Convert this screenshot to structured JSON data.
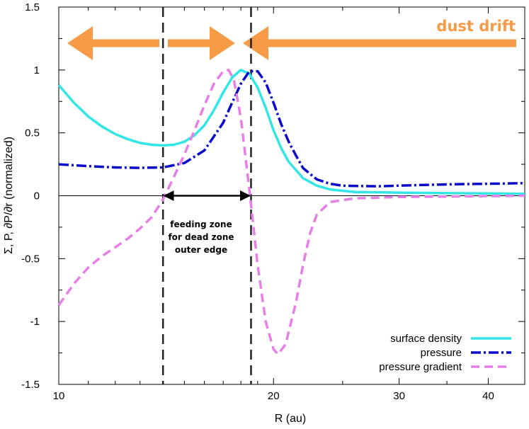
{
  "chart_data": {
    "type": "line",
    "x_scale": "log",
    "xlim": [
      10,
      45
    ],
    "ylim": [
      -1.5,
      1.5
    ],
    "xlabel": "R (au)",
    "ylabel": "Σ, P, ∂P/∂r (normalized)",
    "x_ticks": [
      10,
      20,
      30,
      40
    ],
    "y_ticks": [
      -1.5,
      -1,
      -0.5,
      0,
      0.5,
      1,
      1.5
    ],
    "x_tick_labels": [
      "10",
      "20",
      "30",
      "40"
    ],
    "y_tick_labels": [
      "-1.5",
      "-1",
      "-0.5",
      "0",
      "0.5",
      "1",
      "1.5"
    ],
    "legend_position": "bottom-right",
    "grid": false,
    "series": [
      {
        "name": "surface density",
        "color": "#33e6e6",
        "style": "solid",
        "points": [
          [
            10,
            0.88
          ],
          [
            10.5,
            0.74
          ],
          [
            11,
            0.63
          ],
          [
            11.5,
            0.55
          ],
          [
            12,
            0.49
          ],
          [
            12.5,
            0.45
          ],
          [
            13,
            0.42
          ],
          [
            13.5,
            0.405
          ],
          [
            14,
            0.4
          ],
          [
            14.5,
            0.405
          ],
          [
            15,
            0.43
          ],
          [
            15.5,
            0.48
          ],
          [
            16,
            0.56
          ],
          [
            16.5,
            0.68
          ],
          [
            17,
            0.82
          ],
          [
            17.5,
            0.94
          ],
          [
            18,
            1.0
          ],
          [
            18.5,
            0.97
          ],
          [
            19,
            0.86
          ],
          [
            19.5,
            0.7
          ],
          [
            20,
            0.52
          ],
          [
            20.5,
            0.38
          ],
          [
            21,
            0.27
          ],
          [
            22,
            0.14
          ],
          [
            23,
            0.08
          ],
          [
            24,
            0.05
          ],
          [
            26,
            0.03
          ],
          [
            30,
            0.025
          ],
          [
            35,
            0.02
          ],
          [
            40,
            0.018
          ],
          [
            45,
            0.015
          ]
        ]
      },
      {
        "name": "pressure",
        "color": "#0a0acc",
        "style": "dash-dot",
        "points": [
          [
            10,
            0.25
          ],
          [
            11,
            0.235
          ],
          [
            12,
            0.225
          ],
          [
            13,
            0.222
          ],
          [
            14,
            0.225
          ],
          [
            15,
            0.26
          ],
          [
            16,
            0.36
          ],
          [
            17,
            0.58
          ],
          [
            17.5,
            0.74
          ],
          [
            18,
            0.89
          ],
          [
            18.5,
            0.99
          ],
          [
            19,
            0.99
          ],
          [
            19.5,
            0.9
          ],
          [
            20,
            0.74
          ],
          [
            20.5,
            0.57
          ],
          [
            21,
            0.43
          ],
          [
            21.5,
            0.32
          ],
          [
            22,
            0.22
          ],
          [
            23,
            0.13
          ],
          [
            24,
            0.095
          ],
          [
            25,
            0.08
          ],
          [
            28,
            0.075
          ],
          [
            32,
            0.085
          ],
          [
            36,
            0.092
          ],
          [
            40,
            0.095
          ],
          [
            45,
            0.1
          ]
        ]
      },
      {
        "name": "pressure gradient",
        "color": "#e87ee8",
        "style": "dashed",
        "points": [
          [
            10,
            -0.87
          ],
          [
            10.5,
            -0.7
          ],
          [
            11,
            -0.57
          ],
          [
            11.5,
            -0.48
          ],
          [
            12,
            -0.41
          ],
          [
            12.5,
            -0.34
          ],
          [
            13,
            -0.26
          ],
          [
            13.5,
            -0.17
          ],
          [
            14,
            -0.03
          ],
          [
            14.5,
            0.15
          ],
          [
            15,
            0.33
          ],
          [
            15.5,
            0.52
          ],
          [
            16,
            0.72
          ],
          [
            16.5,
            0.89
          ],
          [
            17,
            0.99
          ],
          [
            17.3,
            1.0
          ],
          [
            17.6,
            0.92
          ],
          [
            18,
            0.62
          ],
          [
            18.5,
            0.05
          ],
          [
            19,
            -0.55
          ],
          [
            19.5,
            -1.0
          ],
          [
            20,
            -1.22
          ],
          [
            20.3,
            -1.26
          ],
          [
            20.8,
            -1.18
          ],
          [
            21.5,
            -0.85
          ],
          [
            22,
            -0.55
          ],
          [
            22.5,
            -0.3
          ],
          [
            23,
            -0.15
          ],
          [
            24,
            -0.05
          ],
          [
            26,
            -0.02
          ],
          [
            30,
            -0.01
          ],
          [
            40,
            -0.003
          ],
          [
            45,
            0.0
          ]
        ]
      }
    ],
    "reference_lines": [
      {
        "type": "vertical",
        "x": 14,
        "style": "dashed"
      },
      {
        "type": "vertical",
        "x": 18.6,
        "style": "dashed"
      },
      {
        "type": "horizontal",
        "y": 0,
        "style": "solid"
      }
    ],
    "annotations": {
      "feeding_zone": {
        "from": 14,
        "to": 18.6,
        "y": 0,
        "text_lines": [
          "feeding zone",
          "for dead zone",
          "outer edge"
        ]
      },
      "dust_drift": {
        "text": "dust drift",
        "color": "#f79a46"
      }
    }
  }
}
